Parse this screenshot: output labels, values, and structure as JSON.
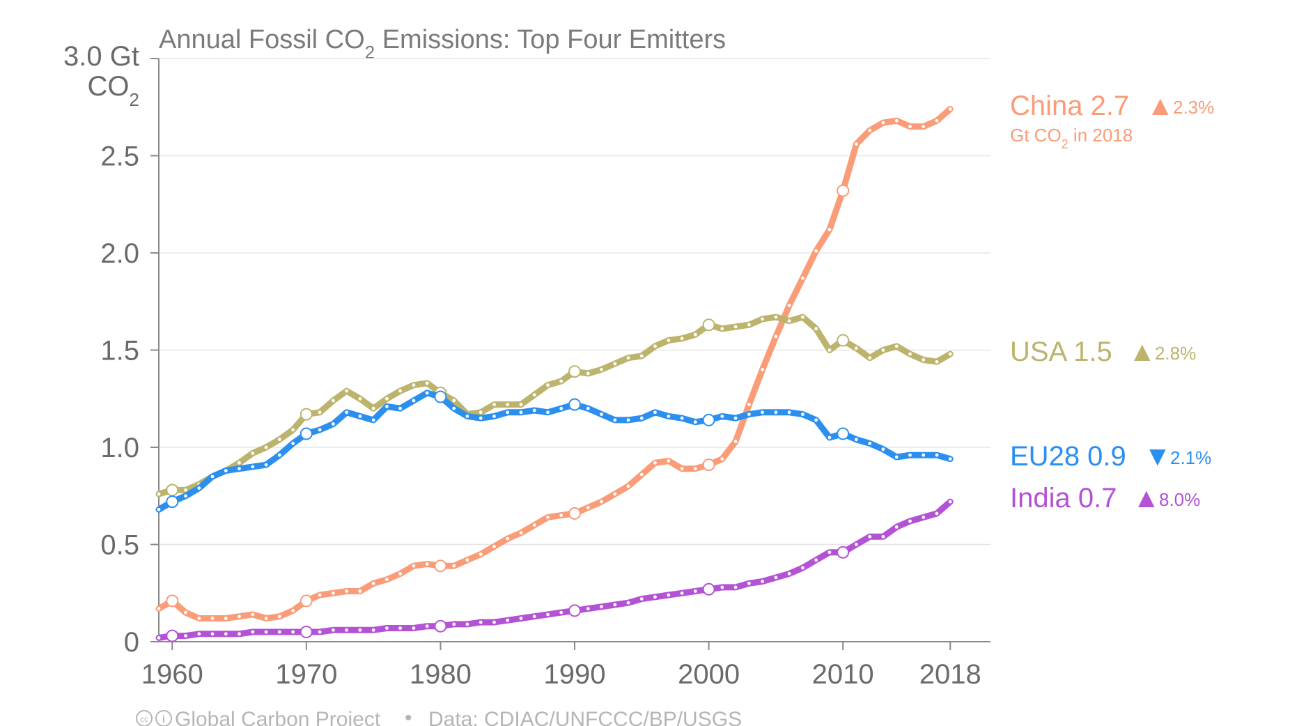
{
  "title": {
    "prefix": "Annual Fossil CO",
    "sub": "2",
    "suffix": " Emissions: Top Four Emitters"
  },
  "y_unit": {
    "line1": "3.0 Gt",
    "line2_main": "CO",
    "line2_sub": "2"
  },
  "y_ticks": [
    "0",
    "0.5",
    "1.0",
    "1.5",
    "2.0",
    "2.5"
  ],
  "x_ticks": [
    "1960",
    "1970",
    "1980",
    "1990",
    "2000",
    "2010",
    "2018"
  ],
  "footer": {
    "cc_symbol": "cc",
    "by_symbol": "i",
    "project": "Global Carbon Project",
    "separator": "•",
    "source": "Data: CDIAC/UNFCCC/BP/USGS"
  },
  "end_labels": {
    "china": {
      "name": "China 2.7",
      "arrow": "▲",
      "change": "2.3%",
      "note_prefix": "Gt CO",
      "note_sub": "2",
      "note_suffix": " in 2018"
    },
    "usa": {
      "name": "USA 1.5",
      "arrow": "▲",
      "change": "2.8%"
    },
    "eu28": {
      "name": "EU28 0.9",
      "arrow": "▼",
      "change": "2.1%"
    },
    "india": {
      "name": "India 0.7",
      "arrow": "▲",
      "change": "8.0%"
    }
  },
  "colors": {
    "china": "#f99c77",
    "usa": "#bcb46c",
    "eu28": "#2b8ff0",
    "india": "#b452d6",
    "grid": "#e6e6e6",
    "axis": "#8a8a8a",
    "text": "#6a6a6a"
  },
  "chart_data": {
    "type": "line",
    "title": "Annual Fossil CO2 Emissions: Top Four Emitters",
    "ylabel": "Gt CO2",
    "xlim": [
      1959,
      2021
    ],
    "ylim": [
      0,
      3.0
    ],
    "x_ticks": [
      1960,
      1970,
      1980,
      1990,
      2000,
      2010,
      2018
    ],
    "y_ticks": [
      0,
      0.5,
      1.0,
      1.5,
      2.0,
      2.5,
      3.0
    ],
    "grid": true,
    "legend": "right end labels",
    "x": [
      1959,
      1960,
      1961,
      1962,
      1963,
      1964,
      1965,
      1966,
      1967,
      1968,
      1969,
      1970,
      1971,
      1972,
      1973,
      1974,
      1975,
      1976,
      1977,
      1978,
      1979,
      1980,
      1981,
      1982,
      1983,
      1984,
      1985,
      1986,
      1987,
      1988,
      1989,
      1990,
      1991,
      1992,
      1993,
      1994,
      1995,
      1996,
      1997,
      1998,
      1999,
      2000,
      2001,
      2002,
      2003,
      2004,
      2005,
      2006,
      2007,
      2008,
      2009,
      2010,
      2011,
      2012,
      2013,
      2014,
      2015,
      2016,
      2017,
      2018
    ],
    "series": [
      {
        "name": "China",
        "key": "china",
        "values": [
          0.17,
          0.21,
          0.15,
          0.12,
          0.12,
          0.12,
          0.13,
          0.14,
          0.12,
          0.13,
          0.16,
          0.21,
          0.24,
          0.25,
          0.26,
          0.26,
          0.3,
          0.32,
          0.35,
          0.39,
          0.4,
          0.39,
          0.39,
          0.42,
          0.45,
          0.49,
          0.53,
          0.56,
          0.6,
          0.64,
          0.65,
          0.66,
          0.69,
          0.72,
          0.76,
          0.8,
          0.86,
          0.92,
          0.93,
          0.89,
          0.89,
          0.91,
          0.94,
          1.03,
          1.22,
          1.4,
          1.57,
          1.73,
          1.87,
          2.01,
          2.12,
          2.32,
          2.56,
          2.63,
          2.67,
          2.68,
          2.65,
          2.65,
          2.68,
          2.74
        ]
      },
      {
        "name": "USA",
        "key": "usa",
        "values": [
          0.76,
          0.78,
          0.78,
          0.81,
          0.85,
          0.88,
          0.92,
          0.97,
          1.0,
          1.04,
          1.09,
          1.17,
          1.18,
          1.24,
          1.29,
          1.25,
          1.2,
          1.25,
          1.29,
          1.32,
          1.33,
          1.28,
          1.24,
          1.17,
          1.18,
          1.22,
          1.22,
          1.22,
          1.27,
          1.32,
          1.34,
          1.39,
          1.38,
          1.4,
          1.43,
          1.46,
          1.47,
          1.52,
          1.55,
          1.56,
          1.58,
          1.63,
          1.61,
          1.62,
          1.63,
          1.66,
          1.67,
          1.65,
          1.67,
          1.61,
          1.5,
          1.55,
          1.51,
          1.46,
          1.5,
          1.52,
          1.48,
          1.45,
          1.44,
          1.48
        ]
      },
      {
        "name": "EU28",
        "key": "eu28",
        "values": [
          0.68,
          0.72,
          0.75,
          0.79,
          0.85,
          0.88,
          0.89,
          0.9,
          0.91,
          0.96,
          1.02,
          1.07,
          1.09,
          1.12,
          1.18,
          1.16,
          1.14,
          1.21,
          1.2,
          1.24,
          1.28,
          1.26,
          1.2,
          1.16,
          1.15,
          1.16,
          1.18,
          1.18,
          1.19,
          1.18,
          1.2,
          1.22,
          1.2,
          1.17,
          1.14,
          1.14,
          1.15,
          1.18,
          1.16,
          1.15,
          1.13,
          1.14,
          1.16,
          1.15,
          1.17,
          1.18,
          1.18,
          1.18,
          1.17,
          1.14,
          1.05,
          1.07,
          1.04,
          1.02,
          0.99,
          0.95,
          0.96,
          0.96,
          0.96,
          0.94
        ]
      },
      {
        "name": "India",
        "key": "india",
        "values": [
          0.02,
          0.03,
          0.03,
          0.04,
          0.04,
          0.04,
          0.04,
          0.05,
          0.05,
          0.05,
          0.05,
          0.05,
          0.05,
          0.06,
          0.06,
          0.06,
          0.06,
          0.07,
          0.07,
          0.07,
          0.08,
          0.08,
          0.09,
          0.09,
          0.1,
          0.1,
          0.11,
          0.12,
          0.13,
          0.14,
          0.15,
          0.16,
          0.17,
          0.18,
          0.19,
          0.2,
          0.22,
          0.23,
          0.24,
          0.25,
          0.26,
          0.27,
          0.28,
          0.28,
          0.3,
          0.31,
          0.33,
          0.35,
          0.38,
          0.42,
          0.46,
          0.46,
          0.5,
          0.54,
          0.54,
          0.59,
          0.62,
          0.64,
          0.66,
          0.72
        ]
      }
    ],
    "end_values": {
      "China": 2.7,
      "USA": 1.5,
      "EU28": 0.9,
      "India": 0.7
    },
    "growth_2018": {
      "China": "+2.3%",
      "USA": "+2.8%",
      "EU28": "-2.1%",
      "India": "+8.0%"
    }
  }
}
